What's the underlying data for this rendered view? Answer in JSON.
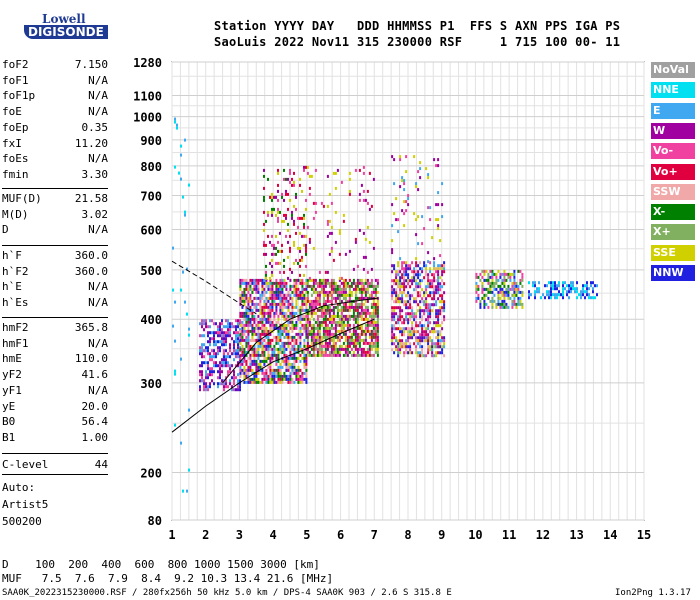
{
  "logo": {
    "top": "Lowell",
    "bottom": "DIGISONDE"
  },
  "header": {
    "line1": "Station YYYY DAY   DDD HHMMSS P1  FFS S AXN PPS IGA PS",
    "line2": "SaoLuis 2022 Nov11 315 230000 RSF     1 715 100 00- 11"
  },
  "params_group1": [
    {
      "key": "foF2",
      "value": "7.150"
    },
    {
      "key": "foF1",
      "value": "N/A"
    },
    {
      "key": "foF1p",
      "value": "N/A"
    },
    {
      "key": "foE",
      "value": "N/A"
    },
    {
      "key": "foEp",
      "value": "0.35"
    },
    {
      "key": "fxI",
      "value": "11.20"
    },
    {
      "key": "foEs",
      "value": "N/A"
    },
    {
      "key": "fmin",
      "value": "3.30"
    }
  ],
  "params_group2": [
    {
      "key": "MUF(D)",
      "value": "21.58"
    },
    {
      "key": "M(D)",
      "value": "3.02"
    },
    {
      "key": "D",
      "value": "N/A"
    }
  ],
  "params_group3": [
    {
      "key": "h`F",
      "value": "360.0"
    },
    {
      "key": "h`F2",
      "value": "360.0"
    },
    {
      "key": "h`E",
      "value": "N/A"
    },
    {
      "key": "h`Es",
      "value": "N/A"
    }
  ],
  "params_group4": [
    {
      "key": "hmF2",
      "value": "365.8"
    },
    {
      "key": "hmF1",
      "value": "N/A"
    },
    {
      "key": "hmE",
      "value": "110.0"
    },
    {
      "key": "yF2",
      "value": "41.6"
    },
    {
      "key": "yF1",
      "value": "N/A"
    },
    {
      "key": "yE",
      "value": "20.0"
    },
    {
      "key": "B0",
      "value": "56.4"
    },
    {
      "key": "B1",
      "value": "1.00"
    }
  ],
  "c_level": {
    "key": "C-level",
    "value": "44"
  },
  "scaling": [
    "Auto:",
    "Artist5",
    "500200"
  ],
  "footer": {
    "d_row": "D    100  200  400  600  800 1000 1500 3000 [km]",
    "muf_row": "MUF   7.5  7.6  7.9  8.4  9.2 10.3 13.4 21.6 [MHz]",
    "file_info": "SAA0K_2022315230000.RSF / 280fx256h 50 kHz 5.0 km / DPS-4 SAA0K 903 / 2.6 S 315.8 E",
    "version": "Ion2Png 1.3.17"
  },
  "legend": [
    {
      "label": "NoVal",
      "color": "#a0a0a0"
    },
    {
      "label": "NNE",
      "color": "#00e0f0"
    },
    {
      "label": "E",
      "color": "#40a8f0"
    },
    {
      "label": "W",
      "color": "#a000a0"
    },
    {
      "label": "Vo-",
      "color": "#f040a0"
    },
    {
      "label": "Vo+",
      "color": "#e00040"
    },
    {
      "label": "SSW",
      "color": "#f0a8a8"
    },
    {
      "label": "X-",
      "color": "#008000"
    },
    {
      "label": "X+",
      "color": "#80b060"
    },
    {
      "label": "SSE",
      "color": "#d0d000"
    },
    {
      "label": "NNW",
      "color": "#2020e0"
    }
  ],
  "chart_data": {
    "type": "scatter",
    "xlim": [
      1,
      15
    ],
    "ylim": [
      80,
      1280
    ],
    "x_ticks": [
      1,
      2,
      3,
      4,
      5,
      6,
      7,
      8,
      9,
      10,
      11,
      12,
      13,
      14,
      15
    ],
    "y_ticks": [
      80,
      200,
      300,
      400,
      500,
      600,
      700,
      800,
      900,
      1000,
      1100,
      1280
    ],
    "grid": true,
    "legend_position": "right",
    "clusters": [
      {
        "x": [
          1.8,
          3.0
        ],
        "y": [
          290,
          400
        ],
        "density": 0.55,
        "colors": [
          "#2020e0",
          "#a000a0",
          "#40a8f0",
          "#f040a0"
        ]
      },
      {
        "x": [
          3.0,
          5.0
        ],
        "y": [
          300,
          480
        ],
        "density": 0.75,
        "colors": [
          "#a000a0",
          "#f040a0",
          "#e00040",
          "#2020e0",
          "#008000",
          "#d0d000",
          "#40a8f0",
          "#f0a8a8"
        ]
      },
      {
        "x": [
          3.7,
          5.0
        ],
        "y": [
          480,
          800
        ],
        "density": 0.18,
        "colors": [
          "#a000a0",
          "#f040a0",
          "#e00040",
          "#008000",
          "#d0d000"
        ]
      },
      {
        "x": [
          5.0,
          7.1
        ],
        "y": [
          340,
          480
        ],
        "density": 0.75,
        "colors": [
          "#a000a0",
          "#f040a0",
          "#e00040",
          "#008000",
          "#d0d000",
          "#80b060"
        ]
      },
      {
        "x": [
          5.0,
          7.0
        ],
        "y": [
          480,
          800
        ],
        "density": 0.06,
        "colors": [
          "#a000a0",
          "#f040a0",
          "#e00040",
          "#d0d000"
        ]
      },
      {
        "x": [
          7.5,
          9.1
        ],
        "y": [
          340,
          520
        ],
        "density": 0.6,
        "colors": [
          "#e00040",
          "#f040a0",
          "#a000a0",
          "#d0d000",
          "#f0a8a8",
          "#2020e0",
          "#40a8f0"
        ]
      },
      {
        "x": [
          7.5,
          9.1
        ],
        "y": [
          520,
          840
        ],
        "density": 0.05,
        "colors": [
          "#a000a0",
          "#f040a0",
          "#d0d000",
          "#40a8f0"
        ]
      },
      {
        "x": [
          10.0,
          11.4
        ],
        "y": [
          420,
          500
        ],
        "density": 0.6,
        "colors": [
          "#008000",
          "#d0d000",
          "#80b060",
          "#f040a0",
          "#40a8f0",
          "#2020e0"
        ]
      },
      {
        "x": [
          11.5,
          13.6
        ],
        "y": [
          440,
          475
        ],
        "density": 0.45,
        "colors": [
          "#40a8f0",
          "#00e0f0",
          "#2020e0",
          "#40a8f0"
        ]
      },
      {
        "x": [
          1.0,
          1.5
        ],
        "y": [
          150,
          1080
        ],
        "density": 0.02,
        "colors": [
          "#40a8f0",
          "#00e0f0"
        ]
      }
    ],
    "profile_lines": [
      {
        "style": "dashed",
        "points": [
          [
            1.0,
            520
          ],
          [
            2.0,
            475
          ],
          [
            3.0,
            430
          ],
          [
            3.5,
            410
          ]
        ]
      },
      {
        "style": "solid",
        "points": [
          [
            1.0,
            240
          ],
          [
            2.0,
            270
          ],
          [
            3.0,
            300
          ],
          [
            4.0,
            330
          ],
          [
            5.0,
            350
          ],
          [
            6.0,
            375
          ],
          [
            7.0,
            400
          ]
        ]
      },
      {
        "style": "solid",
        "points": [
          [
            2.5,
            300
          ],
          [
            3.5,
            360
          ],
          [
            4.5,
            400
          ],
          [
            5.5,
            425
          ],
          [
            6.5,
            435
          ],
          [
            7.1,
            440
          ]
        ]
      }
    ]
  }
}
